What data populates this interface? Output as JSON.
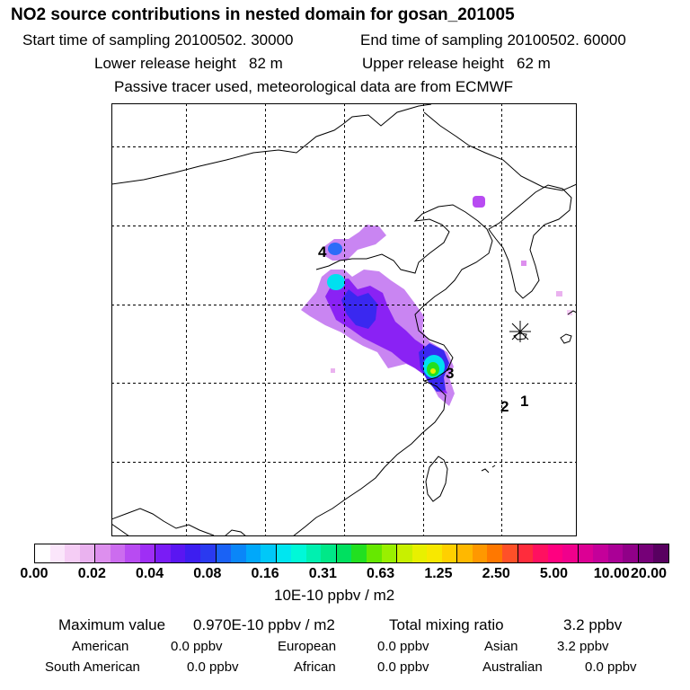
{
  "header": {
    "title": "NO2 source contributions in nested domain for gosan_201005",
    "start_time": "Start time of sampling 20100502. 30000",
    "end_time": "End time of sampling 20100502. 60000",
    "lower_release": "Lower release height   82 m",
    "upper_release": "Upper release height   62 m",
    "tracer_note": "Passive tracer used, meteorological data are from ECMWF"
  },
  "map": {
    "markers": [
      "1",
      "2",
      "3",
      "4"
    ],
    "receptor_icon": "asterisk-icon"
  },
  "colorbar": {
    "tick_labels": [
      "0.00",
      "0.02",
      "0.04",
      "0.08",
      "0.16",
      "0.31",
      "0.63",
      "1.25",
      "2.50",
      "5.00",
      "10.00",
      "20.00"
    ],
    "colors": [
      "#ffffff",
      "#fbe6fb",
      "#f5cdf5",
      "#eab2ef",
      "#dd8fee",
      "#cc6cef",
      "#b84bf2",
      "#9f2ef5",
      "#7a1cf5",
      "#5a16f2",
      "#3d1ef0",
      "#2a3af0",
      "#1a62f5",
      "#0a86f8",
      "#00a8fa",
      "#00c8f8",
      "#00e6f0",
      "#00f8d8",
      "#00f0b0",
      "#00e888",
      "#00e060",
      "#22e020",
      "#66e800",
      "#99f000",
      "#c8f000",
      "#e8f000",
      "#f8e800",
      "#ffd000",
      "#ffb800",
      "#ff9800",
      "#ff7800",
      "#ff5028",
      "#ff2c3c",
      "#ff1060",
      "#ff0080",
      "#f0008c",
      "#dc0094",
      "#c4009a",
      "#aa0096",
      "#900088",
      "#760078",
      "#580060"
    ],
    "units": "10E-10 ppbv / m2"
  },
  "summary": {
    "max_label": "Maximum value",
    "max_value": "0.970E-10 ppbv / m2",
    "total_label": "Total mixing ratio",
    "total_value": "3.2 ppbv",
    "regions": [
      {
        "name": "American",
        "value": "0.0 ppbv"
      },
      {
        "name": "European",
        "value": "0.0 ppbv"
      },
      {
        "name": "Asian",
        "value": "3.2 ppbv"
      },
      {
        "name": "South American",
        "value": "0.0 ppbv"
      },
      {
        "name": "African",
        "value": "0.0 ppbv"
      },
      {
        "name": "Australian",
        "value": "0.0 ppbv"
      }
    ]
  }
}
